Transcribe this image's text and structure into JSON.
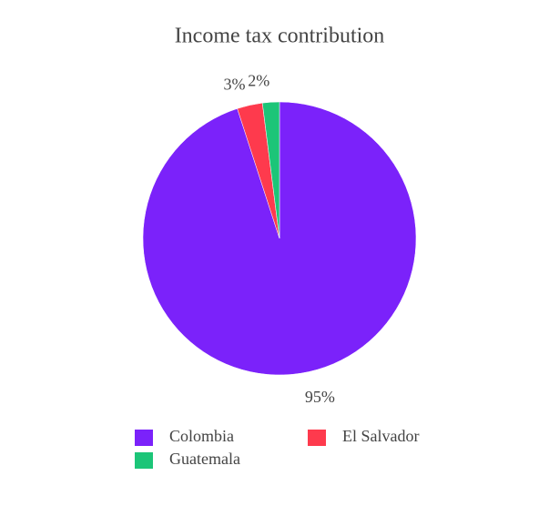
{
  "chart_data": {
    "type": "pie",
    "title": "Income tax contribution",
    "categories": [
      "Colombia",
      "El Salvador",
      "Guatemala"
    ],
    "values": [
      95,
      3,
      2
    ],
    "value_labels": [
      "95%",
      "3%",
      "2%"
    ],
    "colors": [
      "#7b22fa",
      "#fe3a4d",
      "#1cc578"
    ]
  }
}
